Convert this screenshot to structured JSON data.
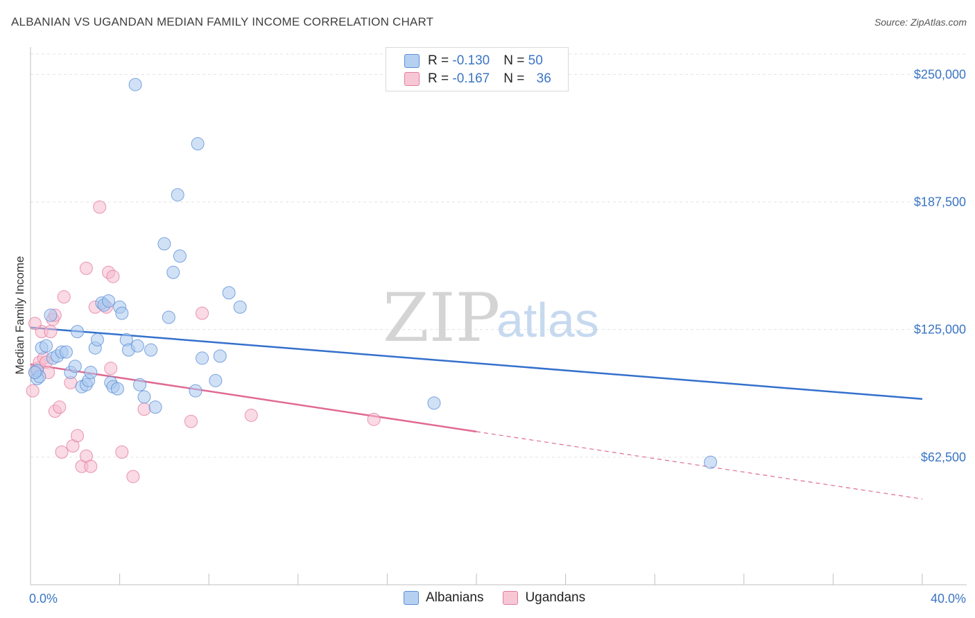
{
  "title": "ALBANIAN VS UGANDAN MEDIAN FAMILY INCOME CORRELATION CHART",
  "source": "Source: ZipAtlas.com",
  "legend": {
    "rows": [
      {
        "r_label": "R = ",
        "r_value": "-0.130",
        "n_label": "N = ",
        "n_value": "50"
      },
      {
        "r_label": "R = ",
        "r_value": "-0.167",
        "n_label": "N = ",
        "n_value": "36"
      }
    ]
  },
  "bottom_legend": {
    "albanians": "Albanians",
    "ugandans": "Ugandans"
  },
  "chart_data": {
    "type": "scatter",
    "title": "ALBANIAN VS UGANDAN MEDIAN FAMILY INCOME CORRELATION CHART",
    "xlabel": "",
    "ylabel": "Median Family Income",
    "xlim": [
      0,
      40
    ],
    "ylim": [
      0,
      262000
    ],
    "x_tick_labels": [
      "0.0%",
      "40.0%"
    ],
    "y_ticks": [
      62500,
      125000,
      187500,
      250000
    ],
    "y_tick_labels": [
      "$62,500",
      "$125,000",
      "$187,500",
      "$250,000"
    ],
    "watermark": {
      "part1": "ZIP",
      "part2": "atlas"
    },
    "colors": {
      "albanians": "#5b8fd6",
      "albanians_fill": "#aac8ee",
      "ugandans": "#e37ca0",
      "ugandans_fill": "#f6bccd",
      "albanians_line": "#3370cc",
      "ugandans_line": "#e06a92"
    },
    "series": [
      {
        "name": "Albanians",
        "r": -0.13,
        "n": 50,
        "trend": {
          "x": [
            0,
            40
          ],
          "y": [
            126000,
            91000
          ]
        },
        "points": [
          [
            0.3,
            101000
          ],
          [
            0.3,
            105000
          ],
          [
            0.4,
            102000
          ],
          [
            0.5,
            116000
          ],
          [
            0.7,
            117000
          ],
          [
            0.9,
            132000
          ],
          [
            1.0,
            111000
          ],
          [
            1.2,
            112000
          ],
          [
            1.4,
            114000
          ],
          [
            1.6,
            114000
          ],
          [
            1.8,
            104000
          ],
          [
            2.0,
            107000
          ],
          [
            2.1,
            124000
          ],
          [
            2.3,
            97000
          ],
          [
            2.5,
            98000
          ],
          [
            2.6,
            100000
          ],
          [
            2.7,
            104000
          ],
          [
            2.9,
            116000
          ],
          [
            3.0,
            120000
          ],
          [
            3.2,
            138000
          ],
          [
            3.3,
            137000
          ],
          [
            3.5,
            139000
          ],
          [
            3.6,
            99000
          ],
          [
            3.7,
            97000
          ],
          [
            3.9,
            96000
          ],
          [
            4.0,
            136000
          ],
          [
            4.1,
            133000
          ],
          [
            4.3,
            120000
          ],
          [
            4.4,
            115000
          ],
          [
            4.8,
            117000
          ],
          [
            4.9,
            98000
          ],
          [
            5.1,
            92000
          ],
          [
            5.4,
            115000
          ],
          [
            5.6,
            87000
          ],
          [
            6.0,
            167000
          ],
          [
            6.2,
            131000
          ],
          [
            6.4,
            153000
          ],
          [
            6.6,
            191000
          ],
          [
            6.7,
            161000
          ],
          [
            4.7,
            245000
          ],
          [
            7.4,
            95000
          ],
          [
            7.5,
            216000
          ],
          [
            7.7,
            111000
          ],
          [
            8.3,
            100000
          ],
          [
            8.5,
            112000
          ],
          [
            8.9,
            143000
          ],
          [
            9.4,
            136000
          ],
          [
            18.1,
            89000
          ],
          [
            30.5,
            60000
          ],
          [
            0.2,
            104000
          ]
        ]
      },
      {
        "name": "Ugandans",
        "r": -0.167,
        "n": 36,
        "trend": {
          "x": [
            0,
            20
          ],
          "y": [
            108000,
            75000
          ]
        },
        "trend_dashed": {
          "x": [
            20,
            40
          ],
          "y": [
            75000,
            42000
          ]
        },
        "points": [
          [
            0.1,
            95000
          ],
          [
            0.2,
            104000
          ],
          [
            0.3,
            106000
          ],
          [
            0.4,
            109000
          ],
          [
            0.5,
            124000
          ],
          [
            0.6,
            111000
          ],
          [
            0.7,
            109000
          ],
          [
            0.8,
            104000
          ],
          [
            0.9,
            124000
          ],
          [
            1.0,
            130000
          ],
          [
            1.1,
            132000
          ],
          [
            1.1,
            85000
          ],
          [
            1.3,
            87000
          ],
          [
            1.4,
            65000
          ],
          [
            1.5,
            141000
          ],
          [
            1.8,
            99000
          ],
          [
            1.9,
            68000
          ],
          [
            2.1,
            73000
          ],
          [
            2.3,
            58000
          ],
          [
            2.5,
            155000
          ],
          [
            2.5,
            63000
          ],
          [
            2.7,
            58000
          ],
          [
            2.9,
            136000
          ],
          [
            3.1,
            185000
          ],
          [
            3.4,
            136000
          ],
          [
            3.5,
            153000
          ],
          [
            3.6,
            106000
          ],
          [
            3.7,
            151000
          ],
          [
            4.1,
            65000
          ],
          [
            4.6,
            53000
          ],
          [
            5.1,
            86000
          ],
          [
            7.2,
            80000
          ],
          [
            7.7,
            133000
          ],
          [
            9.9,
            83000
          ],
          [
            15.4,
            81000
          ],
          [
            0.2,
            128000
          ]
        ]
      }
    ]
  }
}
